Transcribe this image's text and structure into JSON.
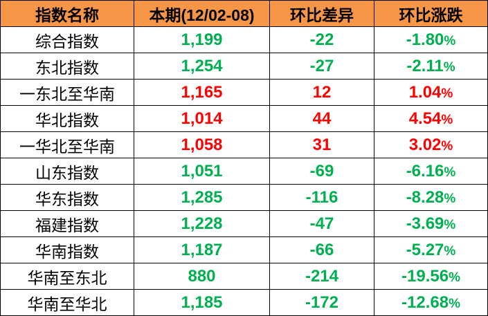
{
  "colors": {
    "header_bg": "#F79646",
    "down": "#00B050",
    "up": "#FF0000"
  },
  "table": {
    "headers": [
      "指数名称",
      "本期(12/02-08)",
      "环比差异",
      "环比涨跌"
    ],
    "rows": [
      {
        "name": "综合指数",
        "value": "1,199",
        "diff": "-22",
        "change": "-1.80",
        "pct": "%",
        "trend": "down"
      },
      {
        "name": "东北指数",
        "value": "1,254",
        "diff": "-27",
        "change": "-2.11",
        "pct": "%",
        "trend": "down"
      },
      {
        "name": "一东北至华南",
        "value": "1,165",
        "diff": "12",
        "change": "1.04",
        "pct": "%",
        "trend": "up"
      },
      {
        "name": "华北指数",
        "value": "1,014",
        "diff": "44",
        "change": "4.54",
        "pct": "%",
        "trend": "up"
      },
      {
        "name": "一华北至华南",
        "value": "1,058",
        "diff": "31",
        "change": "3.02",
        "pct": "%",
        "trend": "up"
      },
      {
        "name": "山东指数",
        "value": "1,051",
        "diff": "-69",
        "change": "-6.16",
        "pct": "%",
        "trend": "down"
      },
      {
        "name": "华东指数",
        "value": "1,285",
        "diff": "-116",
        "change": "-8.28",
        "pct": "%",
        "trend": "down"
      },
      {
        "name": "福建指数",
        "value": "1,228",
        "diff": "-47",
        "change": "-3.69",
        "pct": "%",
        "trend": "down"
      },
      {
        "name": "华南指数",
        "value": "1,187",
        "diff": "-66",
        "change": "-5.27",
        "pct": "%",
        "trend": "down"
      },
      {
        "name": "华南至东北",
        "value": "880",
        "diff": "-214",
        "change": "-19.56",
        "pct": "%",
        "trend": "down"
      },
      {
        "name": "华南至华北",
        "value": "1,185",
        "diff": "-172",
        "change": "-12.68",
        "pct": "%",
        "trend": "down"
      }
    ]
  }
}
